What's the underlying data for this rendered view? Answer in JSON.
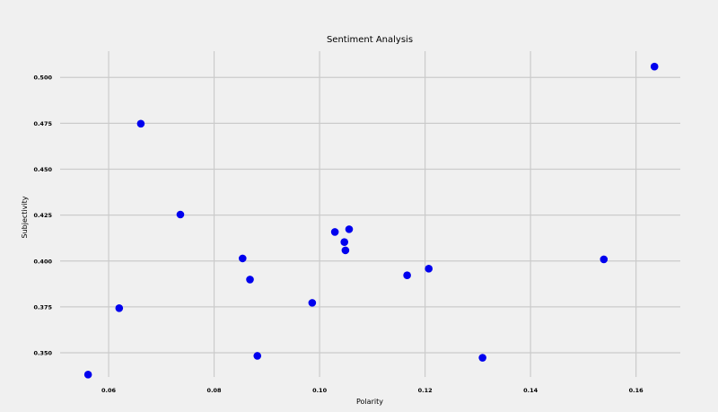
{
  "chart_data": {
    "type": "scatter",
    "title": "Sentiment Analysis",
    "xlabel": "Polarity",
    "ylabel": "Subjectivity",
    "xlim": [
      0.0508,
      0.1684
    ],
    "ylim": [
      0.3368,
      0.5143
    ],
    "xticks": [
      0.06,
      0.08,
      0.1,
      0.12,
      0.14,
      0.16
    ],
    "xtick_labels": [
      "0.06",
      "0.08",
      "0.10",
      "0.12",
      "0.14",
      "0.16"
    ],
    "yticks": [
      0.35,
      0.375,
      0.4,
      0.425,
      0.45,
      0.475,
      0.5
    ],
    "ytick_labels": [
      "0.350",
      "0.375",
      "0.400",
      "0.425",
      "0.450",
      "0.475",
      "0.500"
    ],
    "grid": true,
    "legend": false,
    "marker_color": "#0000ee",
    "background": "#f0f0f0",
    "points": [
      {
        "x": 0.0561,
        "y": 0.3381
      },
      {
        "x": 0.062,
        "y": 0.3743
      },
      {
        "x": 0.0661,
        "y": 0.4748
      },
      {
        "x": 0.0736,
        "y": 0.4253
      },
      {
        "x": 0.0854,
        "y": 0.4014
      },
      {
        "x": 0.0868,
        "y": 0.3899
      },
      {
        "x": 0.0882,
        "y": 0.3483
      },
      {
        "x": 0.0986,
        "y": 0.3772
      },
      {
        "x": 0.1029,
        "y": 0.4158
      },
      {
        "x": 0.1047,
        "y": 0.4103
      },
      {
        "x": 0.1049,
        "y": 0.4058
      },
      {
        "x": 0.1056,
        "y": 0.4173
      },
      {
        "x": 0.1166,
        "y": 0.3922
      },
      {
        "x": 0.1207,
        "y": 0.3958
      },
      {
        "x": 0.1309,
        "y": 0.3473
      },
      {
        "x": 0.1539,
        "y": 0.4009
      },
      {
        "x": 0.1635,
        "y": 0.5059
      }
    ]
  }
}
